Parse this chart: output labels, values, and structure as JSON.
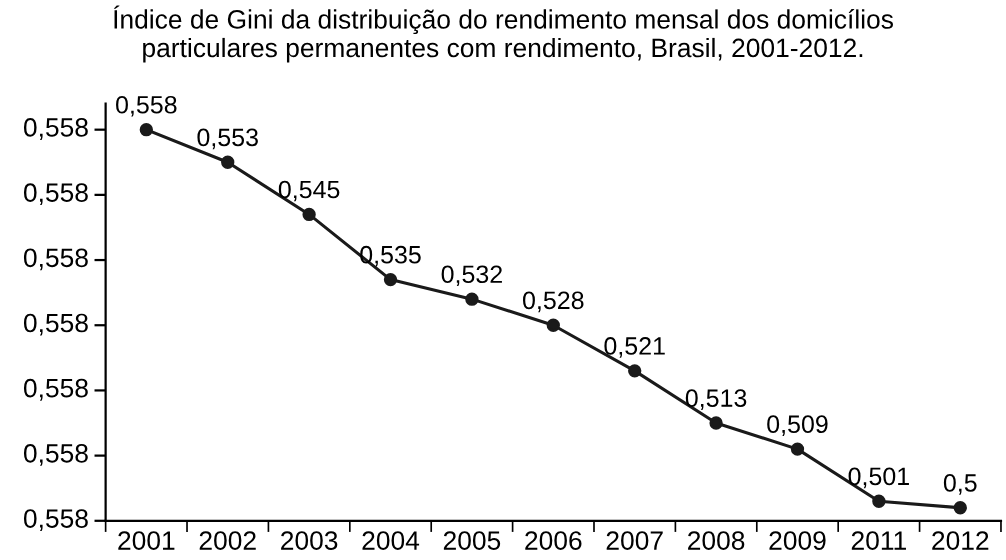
{
  "chart_data": {
    "type": "line",
    "title": "Índice de Gini da distribuição do rendimento mensal dos domicílios\nparticulares permanentes com rendimento, Brasil, 2001-2012.",
    "categories": [
      "2001",
      "2002",
      "2003",
      "2004",
      "2005",
      "2006",
      "2007",
      "2008",
      "2009",
      "2011",
      "2012"
    ],
    "series": [
      {
        "color": "#1a1a1a",
        "values": [
          0.558,
          0.553,
          0.545,
          0.535,
          0.532,
          0.528,
          0.521,
          0.513,
          0.509,
          0.501,
          0.5
        ],
        "value_labels": [
          "0,558",
          "0,553",
          "0,545",
          "0,535",
          "0,532",
          "0,528",
          "0,521",
          "0,513",
          "0,509",
          "0,501",
          "0,5"
        ]
      }
    ],
    "ylim": [
      0.498,
      0.562
    ],
    "yticks": [
      {
        "value": 0.558,
        "label": null
      },
      {
        "value": 0.548,
        "label": null
      },
      {
        "value": 0.538,
        "label": null
      },
      {
        "value": 0.528,
        "label": null
      },
      {
        "value": 0.518,
        "label": null
      },
      {
        "value": 0.508,
        "label": null
      },
      {
        "value": 0.498,
        "label": null
      }
    ],
    "annotations": [
      "0,558",
      "0,558",
      "0,558",
      "0,558",
      "0,558",
      "0,558",
      "0,558"
    ],
    "marker": "circle",
    "line_style": "solid",
    "grid": false,
    "legend": false
  }
}
